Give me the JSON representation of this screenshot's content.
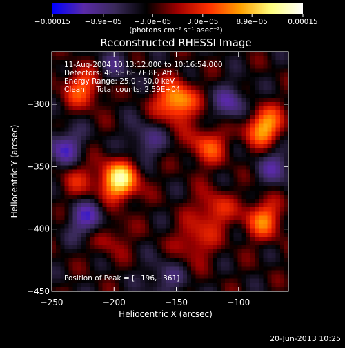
{
  "chart_data": {
    "type": "heatmap",
    "title": "Reconstructed RHESSI Image",
    "xlabel": "Heliocentric X (arcsec)",
    "ylabel": "Heliocentric Y (arcsec)",
    "xlim": [
      -250,
      -60
    ],
    "ylim": [
      -450,
      -258
    ],
    "x_ticks": [
      "−250",
      "−200",
      "−150",
      "−100"
    ],
    "x_tick_values": [
      -250,
      -200,
      -150,
      -100
    ],
    "y_ticks": [
      "−300",
      "−350",
      "−400",
      "−450"
    ],
    "y_tick_values": [
      -300,
      -350,
      -400,
      -450
    ],
    "colorbar": {
      "range": [
        -0.00015,
        0.00015
      ],
      "ticks": [
        "−0.00015",
        "−8.9e−05",
        "−3.0e−05",
        "3.0e−05",
        "8.9e−05",
        "0.00015"
      ],
      "tick_values": [
        -0.00015,
        -8.9e-05,
        -3e-05,
        3e-05,
        8.9e-05,
        0.00015
      ],
      "unit_label": "(photons cm⁻² s⁻¹ asec⁻²)",
      "colors": [
        "#0000ff",
        "#5a2aa8",
        "#3a2a5a",
        "#000000",
        "#a00000",
        "#ff3000",
        "#ffa000",
        "#ffff80",
        "#ffffff"
      ]
    },
    "annotations": [
      "11-Aug-2004 10:13:12.000 to 10:16:54.000",
      "Detectors: 4F 5F 6F 7F 8F, Att 1",
      "Energy Range: 25.0 - 50.0 keV",
      "Clean     Total counts: 2.59E+04"
    ],
    "peak_label": "Position of Peak = [−196,−361]",
    "peak": [
      -196,
      -361
    ],
    "sources": [
      {
        "x": -196,
        "y": -361,
        "value": 1.0
      },
      {
        "x": -150,
        "y": -298,
        "value": 0.85
      },
      {
        "x": -225,
        "y": -287,
        "value": 0.55
      },
      {
        "x": -80,
        "y": -318,
        "value": 0.8
      },
      {
        "x": -80,
        "y": -392,
        "value": 0.6
      },
      {
        "x": -120,
        "y": -385,
        "value": 0.45
      },
      {
        "x": -125,
        "y": -333,
        "value": 0.5
      },
      {
        "x": -205,
        "y": -405,
        "value": 0.35
      },
      {
        "x": -135,
        "y": -410,
        "value": 0.4
      },
      {
        "x": -230,
        "y": -360,
        "value": 0.3
      },
      {
        "x": -175,
        "y": -330,
        "value": -0.35
      },
      {
        "x": -220,
        "y": -393,
        "value": -0.55
      },
      {
        "x": -105,
        "y": -300,
        "value": -0.45
      },
      {
        "x": -70,
        "y": -350,
        "value": -0.4
      },
      {
        "x": -160,
        "y": -440,
        "value": -0.3
      },
      {
        "x": -240,
        "y": -335,
        "value": -0.5
      },
      {
        "x": -200,
        "y": -270,
        "value": -0.25
      }
    ]
  },
  "footer": {
    "timestamp": "20-Jun-2013 10:25"
  }
}
